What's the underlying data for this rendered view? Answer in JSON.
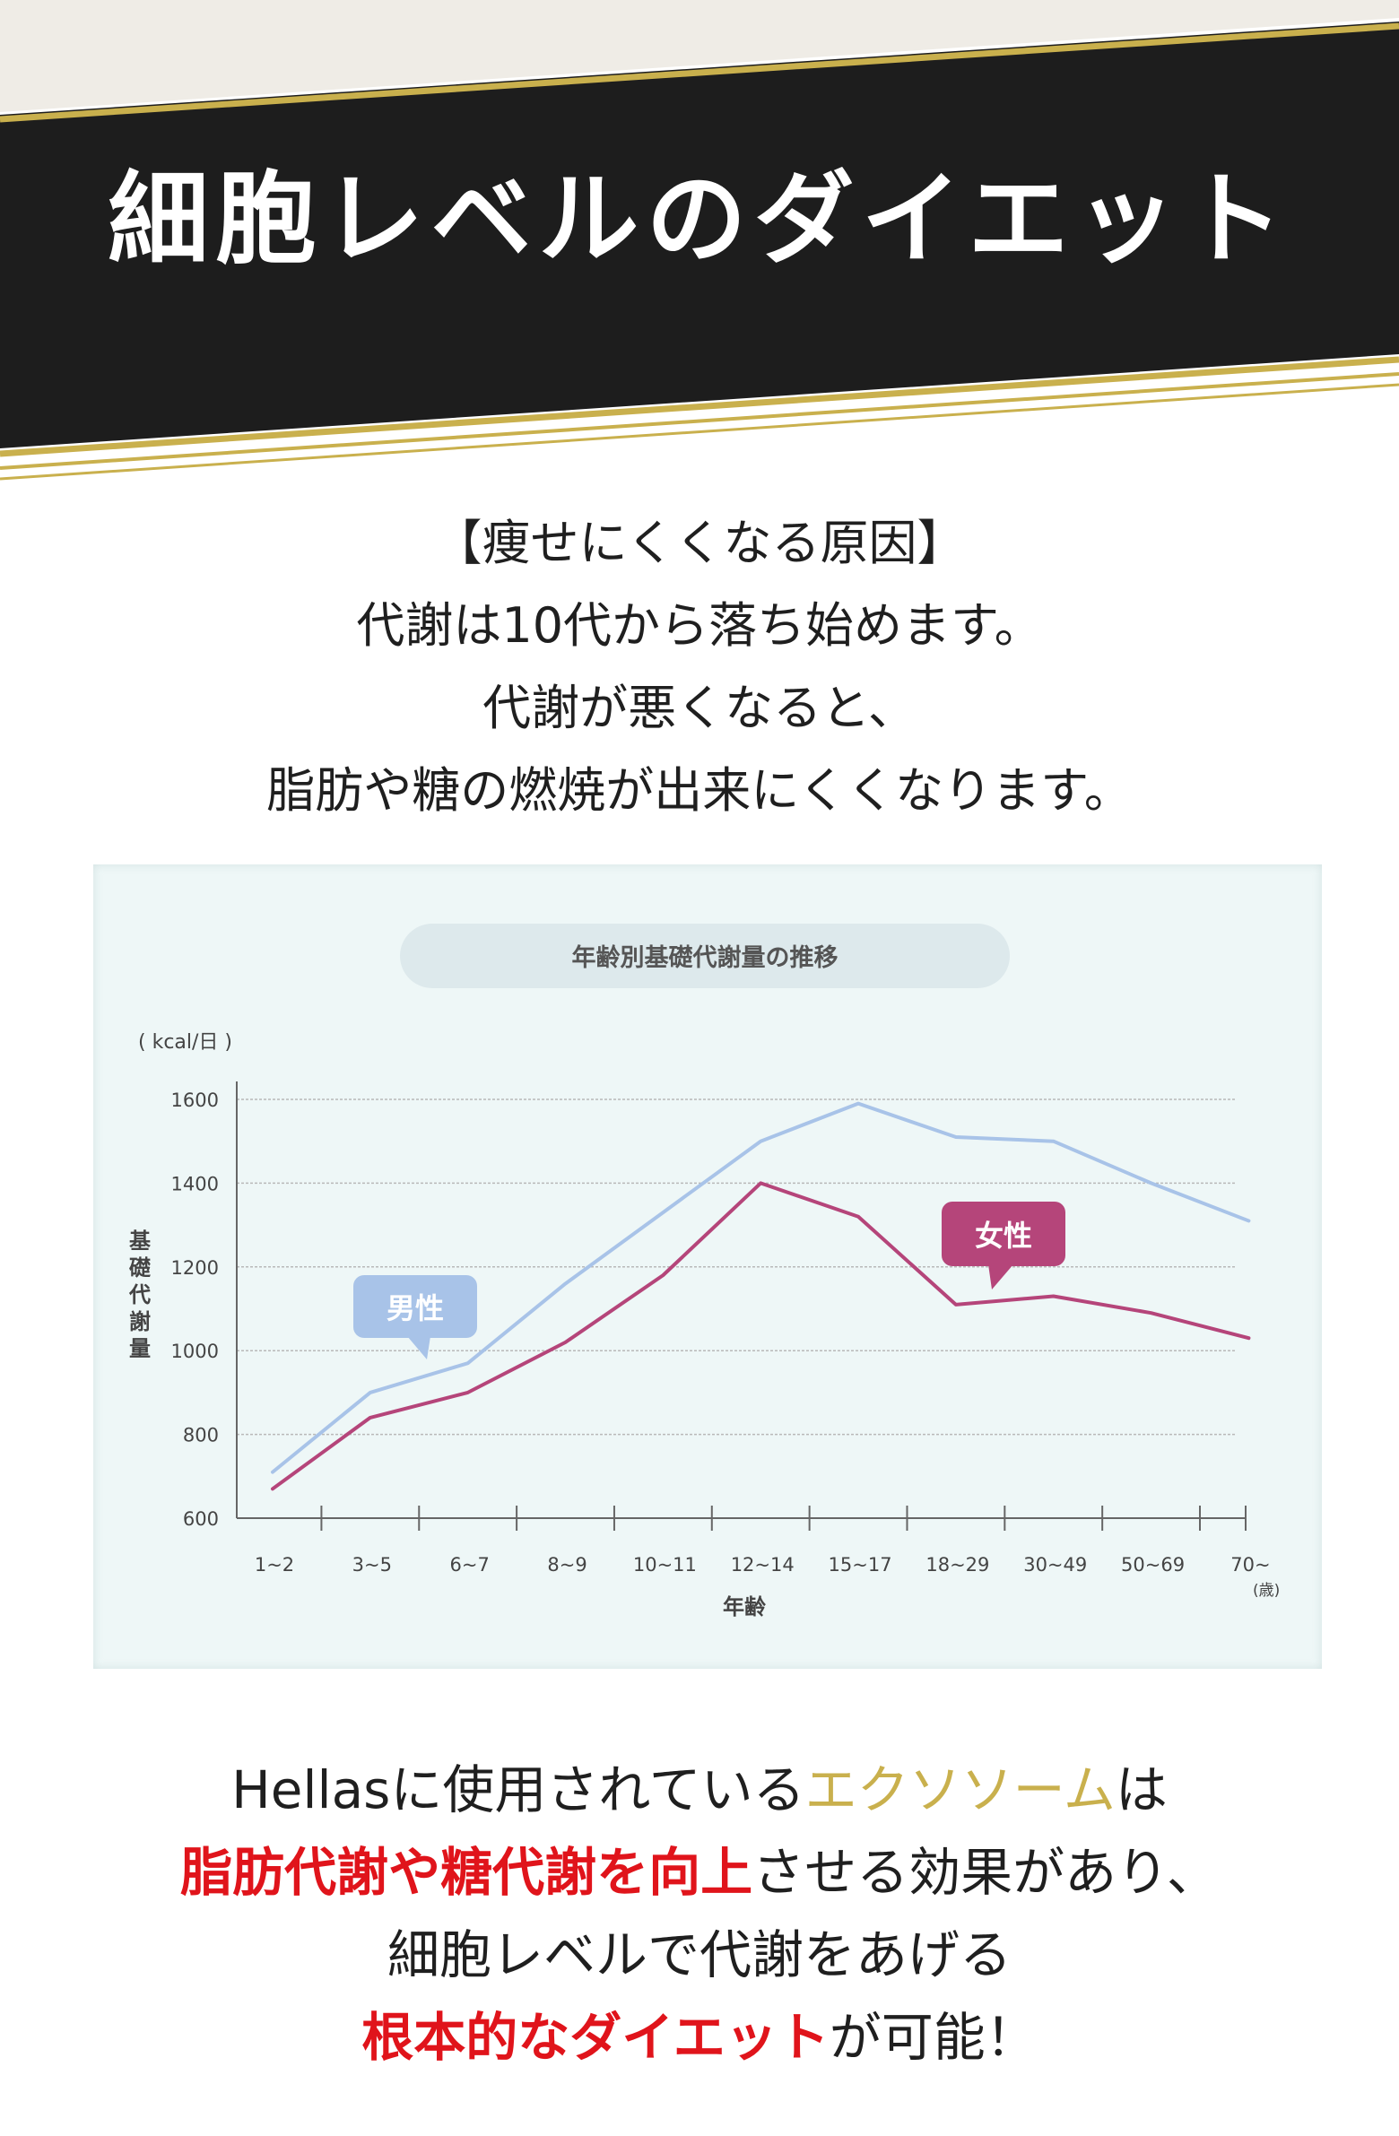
{
  "banner": {
    "title": "細胞レベルのダイエット"
  },
  "intro": {
    "lines": [
      "【痩せにくくなる原因】",
      "代謝は10代から落ち始めます。",
      "代謝が悪くなると、",
      "脂肪や糖の燃焼が出来にくくなります。"
    ]
  },
  "outro": {
    "line1_a": "Hellasに使用されている",
    "line1_b": "エクソソーム",
    "line1_c": "は",
    "line2_a": "脂肪代謝や糖代謝を向上",
    "line2_b": "させる効果があり、",
    "line3": "細胞レベルで代謝をあげる",
    "line4_a": "根本的なダイエット",
    "line4_b": "が可能！"
  },
  "colors": {
    "banner_black": "#1d1d1d",
    "gold": "#c9b04d",
    "male": "#a8c3e8",
    "female": "#b5457a",
    "red": "#e0141b"
  },
  "chart_data": {
    "type": "line",
    "title": "年齢別基礎代謝量の推移",
    "unit_label": "( kcal/日 )",
    "ylabel": "基礎代謝量",
    "xlabel": "年齢",
    "x_unit": "(歳)",
    "categories": [
      "1~2",
      "3~5",
      "6~7",
      "8~9",
      "10~11",
      "12~14",
      "15~17",
      "18~29",
      "30~49",
      "50~69",
      "70~"
    ],
    "yticks": [
      600,
      800,
      1000,
      1200,
      1400,
      1600
    ],
    "ylim": [
      600,
      1600
    ],
    "grid": true,
    "series": [
      {
        "name": "男性",
        "color": "#a8c3e8",
        "values": [
          710,
          900,
          970,
          1160,
          1330,
          1500,
          1590,
          1510,
          1500,
          1400,
          1310
        ]
      },
      {
        "name": "女性",
        "color": "#b5457a",
        "values": [
          670,
          840,
          900,
          1020,
          1180,
          1400,
          1320,
          1110,
          1130,
          1090,
          1030
        ]
      }
    ]
  }
}
